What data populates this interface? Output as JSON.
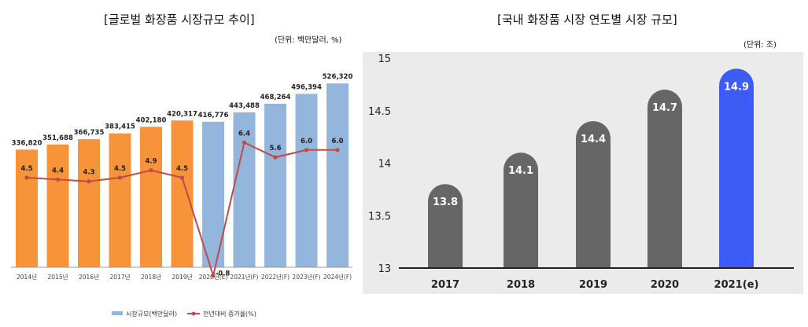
{
  "chart_data": [
    {
      "type": "bar",
      "title": "[글로벌 화장품 시장규모 추이]",
      "unit_note": "(단위: 백만달러, %)",
      "categories": [
        "2014년",
        "2015년",
        "2016년",
        "2017년",
        "2018년",
        "2019년",
        "2020년(E)",
        "2021년(F)",
        "2022년(F)",
        "2023년(F)",
        "2024년(F)"
      ],
      "series": [
        {
          "name": "시장규모(백만달러)",
          "type": "bar",
          "values": [
            336820,
            351688,
            366735,
            383415,
            402180,
            420317,
            416776,
            443488,
            468264,
            496394,
            526320
          ],
          "value_labels": [
            "336,820",
            "351,688",
            "366,735",
            "383,415",
            "402,180",
            "420,317",
            "416,776",
            "443,488",
            "468,264",
            "496,394",
            "526,320"
          ],
          "colors": [
            "#f7943a",
            "#f7943a",
            "#f7943a",
            "#f7943a",
            "#f7943a",
            "#f7943a",
            "#94b6dc",
            "#94b6dc",
            "#94b6dc",
            "#94b6dc",
            "#94b6dc"
          ]
        },
        {
          "name": "전년대비 증가율(%)",
          "type": "line",
          "values": [
            4.5,
            4.4,
            4.3,
            4.5,
            4.9,
            4.5,
            -0.8,
            6.4,
            5.6,
            6.0,
            6.0
          ],
          "value_labels": [
            "4.5",
            "4.4",
            "4.3",
            "4.5",
            "4.9",
            "4.5",
            "-0.8",
            "6.4",
            "5.6",
            "6.0",
            "6.0"
          ],
          "color": "#be4b48"
        }
      ],
      "grid": false,
      "legend": "bottom"
    },
    {
      "type": "bar",
      "title": "[국내 화장품 시장 연도별 시장 규모]",
      "unit_note": "(단위: 조)",
      "categories": [
        "2017",
        "2018",
        "2019",
        "2020",
        "2021(e)"
      ],
      "values": [
        13.8,
        14.1,
        14.4,
        14.7,
        14.9
      ],
      "value_labels": [
        "13.8",
        "14.1",
        "14.4",
        "14.7",
        "14.9"
      ],
      "ylim": [
        13,
        15
      ],
      "yticks": [
        "13",
        "13.5",
        "14",
        "14.5",
        "15"
      ],
      "colors": [
        "#666666",
        "#666666",
        "#666666",
        "#666666",
        "#3d5bf5"
      ],
      "background": "#ebebeb",
      "grid": false
    }
  ]
}
